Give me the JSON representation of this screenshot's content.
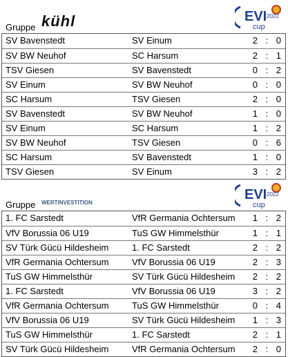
{
  "groups": [
    {
      "label": "Gruppe",
      "sponsor": "kühl",
      "logo": {
        "name": "EVI",
        "year": "2022",
        "word": "cup"
      },
      "matches": [
        {
          "home": "SV Bavenstedt",
          "away": "SV Einum",
          "score": "2 : 0"
        },
        {
          "home": "SV BW Neuhof",
          "away": "SC Harsum",
          "score": "2 : 1"
        },
        {
          "home": "TSV Giesen",
          "away": "SV Bavenstedt",
          "score": "0 : 2"
        },
        {
          "home": "SV Einum",
          "away": "SV BW Neuhof",
          "score": "0 : 0"
        },
        {
          "home": "SC Harsum",
          "away": "TSV Giesen",
          "score": "2 : 0"
        },
        {
          "home": "SV Bavenstedt",
          "away": "SV BW Neuhof",
          "score": "1 : 0"
        },
        {
          "home": "SV Einum",
          "away": "SC Harsum",
          "score": "1 : 2"
        },
        {
          "home": "SV BW Neuhof",
          "away": "TSV Giesen",
          "score": "0 : 6"
        },
        {
          "home": "SC Harsum",
          "away": "SV Bavenstedt",
          "score": "1 : 0"
        },
        {
          "home": "TSV Giesen",
          "away": "SV Einum",
          "score": "3 : 2"
        }
      ]
    },
    {
      "label": "Gruppe",
      "sponsor": "WERTINVESTITION",
      "logo": {
        "name": "EVI",
        "year": "2022",
        "word": "cup"
      },
      "matches": [
        {
          "home": "1. FC Sarstedt",
          "away": "VfR Germania Ochtersum",
          "score": "1 : 2"
        },
        {
          "home": "VfV Borussia 06 U19",
          "away": "TuS GW Himmelsthür",
          "score": "1 : 1"
        },
        {
          "home": "SV Türk Gücü Hildesheim",
          "away": "1. FC Sarstedt",
          "score": "2 : 2"
        },
        {
          "home": "VfR Germania Ochtersum",
          "away": "VfV Borussia 06 U19",
          "score": "2 : 3"
        },
        {
          "home": "TuS GW Himmelsthür",
          "away": "SV Türk Gücü Hildesheim",
          "score": "2 : 2"
        },
        {
          "home": "1. FC Sarstedt",
          "away": "VfV Borussia 06 U19",
          "score": "3 : 2"
        },
        {
          "home": "VfR Germania Ochtersum",
          "away": "TuS GW Himmelsthür",
          "score": "0 : 4"
        },
        {
          "home": "VfV Borussia 06 U19",
          "away": "SV Türk Gücü Hildesheim",
          "score": "1 : 3"
        },
        {
          "home": "TuS GW Himmelsthür",
          "away": "1. FC Sarstedt",
          "score": "2 : 1"
        },
        {
          "home": "SV Türk Gücü Hildesheim",
          "away": "VfR Germania Ochtersum",
          "score": "2 : 0"
        }
      ]
    }
  ]
}
